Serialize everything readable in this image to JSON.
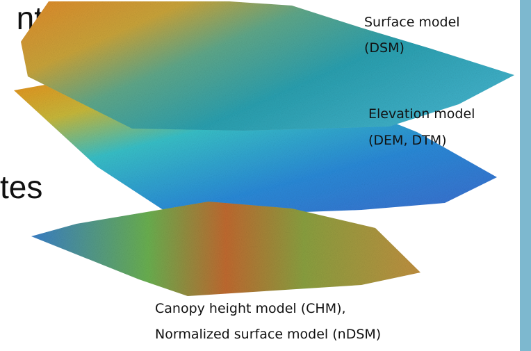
{
  "slide_text": [
    "nt",
    "tes"
  ],
  "layers": [
    {
      "label": [
        "Surface model",
        "(DSM)"
      ]
    },
    {
      "label": [
        "Elevation model",
        "(DEM, DTM)"
      ]
    },
    {
      "label": [
        "Canopy height model (CHM),",
        "Normalized surface model (nDSM)"
      ]
    }
  ]
}
